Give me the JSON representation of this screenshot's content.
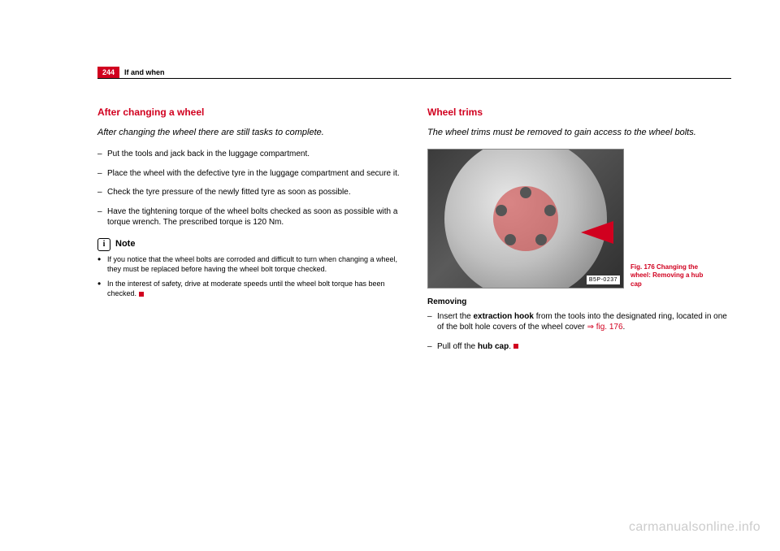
{
  "page_number": "244",
  "section": "If and when",
  "left": {
    "heading": "After changing a wheel",
    "intro": "After changing the wheel there are still tasks to complete.",
    "steps": [
      "Put the tools and jack back in the luggage compartment.",
      "Place the wheel with the defective tyre in the luggage compartment and secure it.",
      "Check the tyre pressure of the newly fitted tyre as soon as possible.",
      "Have the tightening torque of the wheel bolts checked as soon as possible with a torque wrench. The prescribed torque is 120 Nm."
    ],
    "note_label": "Note",
    "notes": [
      "If you notice that the wheel bolts are corroded and difficult to turn when changing a wheel, they must be replaced before having the wheel bolt torque checked.",
      "In the interest of safety, drive at moderate speeds until the wheel bolt torque has been checked."
    ]
  },
  "right": {
    "heading": "Wheel trims",
    "intro": "The wheel trims must be removed to gain access to the wheel bolts.",
    "image_code": "B5P-0237",
    "caption": "Fig. 176    Changing the wheel: Removing a hub cap",
    "sub": "Removing",
    "step1_a": "Insert the ",
    "step1_b": "extraction hook",
    "step1_c": " from the tools into the designated ring, located in one of the bolt hole covers of the wheel cover ",
    "step1_ref": "⇒ fig. 176",
    "step1_d": ".",
    "step2_a": "Pull off the ",
    "step2_b": "hub cap",
    "step2_c": "."
  },
  "watermark": "carmanualsonline.info",
  "colors": {
    "brand_red": "#d1001f",
    "text": "#000000",
    "watermark": "#cccccc"
  }
}
